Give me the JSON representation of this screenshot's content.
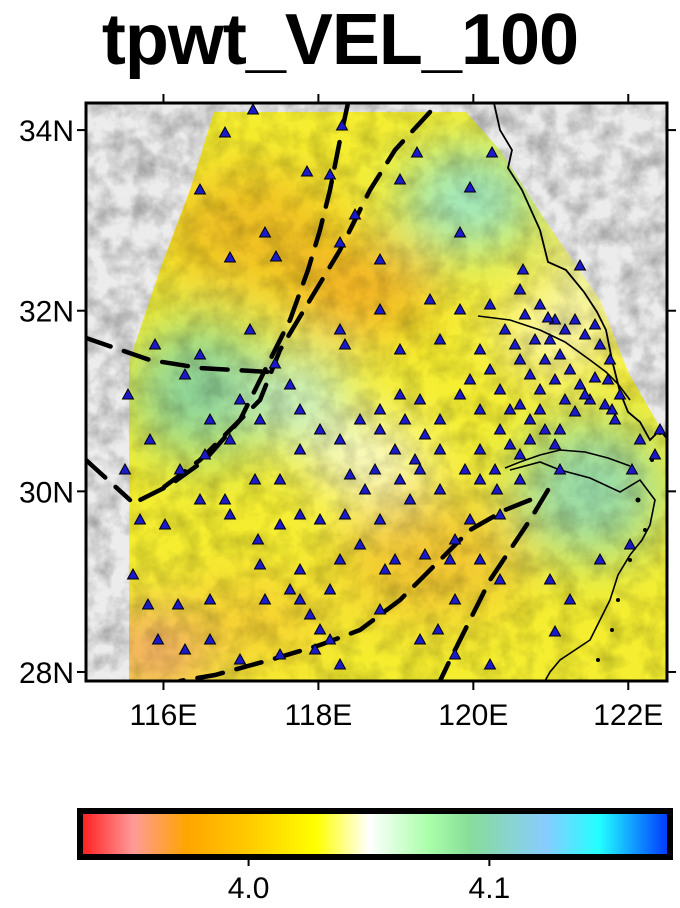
{
  "title": "tpwt_VEL_100",
  "map": {
    "lon_range": [
      115.0,
      122.5
    ],
    "lat_range": [
      27.9,
      34.3
    ],
    "x_ticks": [
      {
        "value": 116,
        "label": "116E"
      },
      {
        "value": 118,
        "label": "118E"
      },
      {
        "value": 120,
        "label": "120E"
      },
      {
        "value": 122,
        "label": "122E"
      }
    ],
    "y_ticks": [
      {
        "value": 28,
        "label": "28N"
      },
      {
        "value": 30,
        "label": "30N"
      },
      {
        "value": 32,
        "label": "32N"
      },
      {
        "value": 34,
        "label": "34N"
      }
    ],
    "station_symbol": "blue-triangle",
    "station_color": "#1a1acc",
    "fault_style": "black-dashed",
    "coastline_color": "#000000",
    "background": "grey-shaded-relief"
  },
  "colorbar": {
    "range": [
      3.93,
      4.175
    ],
    "ticks": [
      {
        "value": 4.0,
        "label": "4.0"
      },
      {
        "value": 4.1,
        "label": "4.1"
      }
    ],
    "stops": [
      "#ff1a1a",
      "#ff9a9a",
      "#ffa500",
      "#ffcc00",
      "#ffff00",
      "#ffffff",
      "#aaffaa",
      "#88dd99",
      "#88ccff",
      "#22ffff",
      "#0033ff"
    ]
  }
}
